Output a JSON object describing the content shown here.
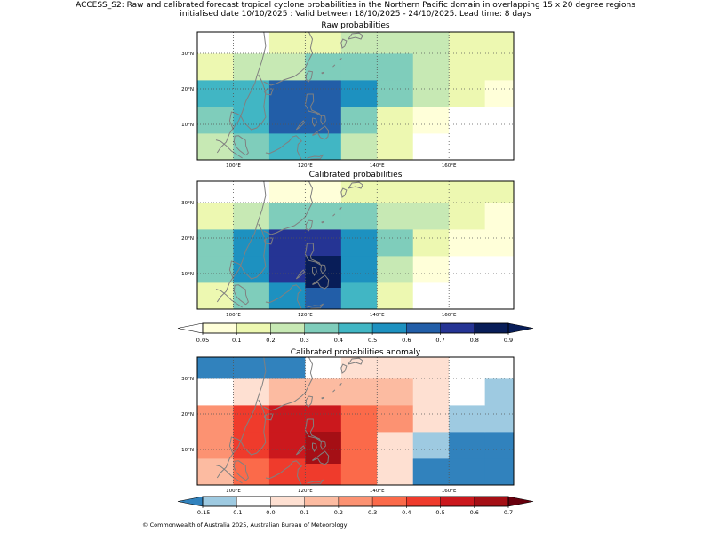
{
  "figure": {
    "title_line1": "ACCESS_S2: Raw and calibrated forecast tropical cyclone probabilities in the Northern Pacific domain in overlapping 15 x 20 degree regions",
    "title_line2": "initialised date 10/10/2025 :  Valid between 18/10/2025 - 24/10/2025. Lead time: 8 days",
    "copyright": "© Commonwealth of Australia 2025, Australian Bureau of Meteorology"
  },
  "chart_data": [
    {
      "type": "heatmap",
      "title": "Raw probabilities",
      "xlabel": "",
      "ylabel": "",
      "xlim": [
        90,
        178
      ],
      "ylim": [
        0,
        36
      ],
      "x_ticks": [
        {
          "value": 100,
          "label": "100°E"
        },
        {
          "value": 120,
          "label": "120°E"
        },
        {
          "value": 140,
          "label": "140°E"
        },
        {
          "value": 160,
          "label": "160°E"
        }
      ],
      "y_ticks": [
        {
          "value": 10,
          "label": "10°N"
        },
        {
          "value": 20,
          "label": "20°N"
        },
        {
          "value": 30,
          "label": "30°N"
        }
      ],
      "cell_size_deg": [
        10,
        7.5
      ],
      "cells": [
        {
          "lon": 90,
          "lat": 0,
          "v": 0.25
        },
        {
          "lon": 100,
          "lat": 0,
          "v": 0.35
        },
        {
          "lon": 110,
          "lat": 0,
          "v": 0.45
        },
        {
          "lon": 120,
          "lat": 0,
          "v": 0.45
        },
        {
          "lon": 130,
          "lat": 0,
          "v": 0.25
        },
        {
          "lon": 140,
          "lat": 0,
          "v": 0.15
        },
        {
          "lon": 150,
          "lat": 0,
          "v": 0.0
        },
        {
          "lon": 160,
          "lat": 0,
          "v": 0.0
        },
        {
          "lon": 170,
          "lat": 0,
          "v": 0.0
        },
        {
          "lon": 90,
          "lat": 7.5,
          "v": 0.35
        },
        {
          "lon": 100,
          "lat": 7.5,
          "v": 0.45
        },
        {
          "lon": 110,
          "lat": 7.5,
          "v": 0.65
        },
        {
          "lon": 120,
          "lat": 7.5,
          "v": 0.65
        },
        {
          "lon": 130,
          "lat": 7.5,
          "v": 0.35
        },
        {
          "lon": 140,
          "lat": 7.5,
          "v": 0.15
        },
        {
          "lon": 150,
          "lat": 7.5,
          "v": 0.07
        },
        {
          "lon": 160,
          "lat": 7.5,
          "v": 0.0
        },
        {
          "lon": 170,
          "lat": 7.5,
          "v": 0.0
        },
        {
          "lon": 90,
          "lat": 15,
          "v": 0.45
        },
        {
          "lon": 100,
          "lat": 15,
          "v": 0.45
        },
        {
          "lon": 110,
          "lat": 15,
          "v": 0.65
        },
        {
          "lon": 120,
          "lat": 15,
          "v": 0.65
        },
        {
          "lon": 130,
          "lat": 15,
          "v": 0.55
        },
        {
          "lon": 140,
          "lat": 15,
          "v": 0.35
        },
        {
          "lon": 150,
          "lat": 15,
          "v": 0.25
        },
        {
          "lon": 160,
          "lat": 15,
          "v": 0.15
        },
        {
          "lon": 170,
          "lat": 15,
          "v": 0.07
        },
        {
          "lon": 90,
          "lat": 22.5,
          "v": 0.15
        },
        {
          "lon": 100,
          "lat": 22.5,
          "v": 0.25
        },
        {
          "lon": 110,
          "lat": 22.5,
          "v": 0.25
        },
        {
          "lon": 120,
          "lat": 22.5,
          "v": 0.35
        },
        {
          "lon": 130,
          "lat": 22.5,
          "v": 0.35
        },
        {
          "lon": 140,
          "lat": 22.5,
          "v": 0.35
        },
        {
          "lon": 150,
          "lat": 22.5,
          "v": 0.25
        },
        {
          "lon": 160,
          "lat": 22.5,
          "v": 0.15
        },
        {
          "lon": 170,
          "lat": 22.5,
          "v": 0.15
        },
        {
          "lon": 90,
          "lat": 30,
          "v": 0.0
        },
        {
          "lon": 100,
          "lat": 30,
          "v": 0.0
        },
        {
          "lon": 110,
          "lat": 30,
          "v": 0.15
        },
        {
          "lon": 120,
          "lat": 30,
          "v": 0.15
        },
        {
          "lon": 130,
          "lat": 30,
          "v": 0.25
        },
        {
          "lon": 140,
          "lat": 30,
          "v": 0.25
        },
        {
          "lon": 150,
          "lat": 30,
          "v": 0.25
        },
        {
          "lon": 160,
          "lat": 30,
          "v": 0.15
        },
        {
          "lon": 170,
          "lat": 30,
          "v": 0.15
        }
      ]
    },
    {
      "type": "heatmap",
      "title": "Calibrated probabilities",
      "xlabel": "",
      "ylabel": "",
      "xlim": [
        90,
        178
      ],
      "ylim": [
        0,
        36
      ],
      "x_ticks": [
        {
          "value": 100,
          "label": "100°E"
        },
        {
          "value": 120,
          "label": "120°E"
        },
        {
          "value": 140,
          "label": "140°E"
        },
        {
          "value": 160,
          "label": "160°E"
        }
      ],
      "y_ticks": [
        {
          "value": 10,
          "label": "10°N"
        },
        {
          "value": 20,
          "label": "20°N"
        },
        {
          "value": 30,
          "label": "30°N"
        }
      ],
      "cell_size_deg": [
        10,
        7.5
      ],
      "cells": [
        {
          "lon": 90,
          "lat": 0,
          "v": 0.15
        },
        {
          "lon": 100,
          "lat": 0,
          "v": 0.35
        },
        {
          "lon": 110,
          "lat": 0,
          "v": 0.55
        },
        {
          "lon": 120,
          "lat": 0,
          "v": 0.65
        },
        {
          "lon": 130,
          "lat": 0,
          "v": 0.45
        },
        {
          "lon": 140,
          "lat": 0,
          "v": 0.15
        },
        {
          "lon": 150,
          "lat": 0,
          "v": 0.0
        },
        {
          "lon": 160,
          "lat": 0,
          "v": 0.0
        },
        {
          "lon": 170,
          "lat": 0,
          "v": 0.0
        },
        {
          "lon": 90,
          "lat": 7.5,
          "v": 0.35
        },
        {
          "lon": 100,
          "lat": 7.5,
          "v": 0.55
        },
        {
          "lon": 110,
          "lat": 7.5,
          "v": 0.75
        },
        {
          "lon": 120,
          "lat": 7.5,
          "v": 0.75
        },
        {
          "lon": 130,
          "lat": 7.5,
          "v": 0.55
        },
        {
          "lon": 140,
          "lat": 7.5,
          "v": 0.25
        },
        {
          "lon": 150,
          "lat": 7.5,
          "v": 0.07
        },
        {
          "lon": 160,
          "lat": 7.5,
          "v": 0.0
        },
        {
          "lon": 170,
          "lat": 7.5,
          "v": 0.0
        },
        {
          "lon": 90,
          "lat": 15,
          "v": 0.35
        },
        {
          "lon": 100,
          "lat": 15,
          "v": 0.55
        },
        {
          "lon": 110,
          "lat": 15,
          "v": 0.75
        },
        {
          "lon": 120,
          "lat": 15,
          "v": 0.75
        },
        {
          "lon": 130,
          "lat": 15,
          "v": 0.55
        },
        {
          "lon": 140,
          "lat": 15,
          "v": 0.35
        },
        {
          "lon": 150,
          "lat": 15,
          "v": 0.15
        },
        {
          "lon": 160,
          "lat": 15,
          "v": 0.07
        },
        {
          "lon": 170,
          "lat": 15,
          "v": 0.07
        },
        {
          "lon": 90,
          "lat": 22.5,
          "v": 0.15
        },
        {
          "lon": 100,
          "lat": 22.5,
          "v": 0.25
        },
        {
          "lon": 110,
          "lat": 22.5,
          "v": 0.35
        },
        {
          "lon": 120,
          "lat": 22.5,
          "v": 0.35
        },
        {
          "lon": 130,
          "lat": 22.5,
          "v": 0.35
        },
        {
          "lon": 140,
          "lat": 22.5,
          "v": 0.25
        },
        {
          "lon": 150,
          "lat": 22.5,
          "v": 0.25
        },
        {
          "lon": 160,
          "lat": 22.5,
          "v": 0.15
        },
        {
          "lon": 170,
          "lat": 22.5,
          "v": 0.07
        },
        {
          "lon": 90,
          "lat": 30,
          "v": 0.0
        },
        {
          "lon": 100,
          "lat": 30,
          "v": 0.0
        },
        {
          "lon": 110,
          "lat": 30,
          "v": 0.07
        },
        {
          "lon": 120,
          "lat": 30,
          "v": 0.07
        },
        {
          "lon": 130,
          "lat": 30,
          "v": 0.15
        },
        {
          "lon": 140,
          "lat": 30,
          "v": 0.15
        },
        {
          "lon": 150,
          "lat": 30,
          "v": 0.15
        },
        {
          "lon": 160,
          "lat": 30,
          "v": 0.15
        },
        {
          "lon": 170,
          "lat": 30,
          "v": 0.15
        }
      ],
      "special_cells": [
        {
          "lon": 120,
          "lat": 6,
          "lon_end": 130,
          "lat_end": 15,
          "v": 0.95
        }
      ]
    },
    {
      "type": "heatmap",
      "title": "Calibrated probabilities anomaly",
      "xlabel": "",
      "ylabel": "",
      "xlim": [
        90,
        178
      ],
      "ylim": [
        0,
        36
      ],
      "x_ticks": [
        {
          "value": 100,
          "label": "100°E"
        },
        {
          "value": 120,
          "label": "120°E"
        },
        {
          "value": 140,
          "label": "140°E"
        },
        {
          "value": 160,
          "label": "160°E"
        }
      ],
      "y_ticks": [
        {
          "value": 10,
          "label": "10°N"
        },
        {
          "value": 20,
          "label": "20°N"
        },
        {
          "value": 30,
          "label": "30°N"
        }
      ],
      "cell_size_deg": [
        10,
        7.5
      ],
      "cells": [
        {
          "lon": 90,
          "lat": 0,
          "v": 0.15
        },
        {
          "lon": 100,
          "lat": 0,
          "v": 0.35
        },
        {
          "lon": 110,
          "lat": 0,
          "v": 0.45
        },
        {
          "lon": 120,
          "lat": 0,
          "v": 0.45
        },
        {
          "lon": 130,
          "lat": 0,
          "v": 0.35
        },
        {
          "lon": 140,
          "lat": 0,
          "v": 0.05
        },
        {
          "lon": 150,
          "lat": 0,
          "v": -0.17
        },
        {
          "lon": 160,
          "lat": 0,
          "v": -0.17
        },
        {
          "lon": 170,
          "lat": 0,
          "v": -0.17
        },
        {
          "lon": 90,
          "lat": 7.5,
          "v": 0.25
        },
        {
          "lon": 100,
          "lat": 7.5,
          "v": 0.45
        },
        {
          "lon": 110,
          "lat": 7.5,
          "v": 0.55
        },
        {
          "lon": 120,
          "lat": 7.5,
          "v": 0.55
        },
        {
          "lon": 130,
          "lat": 7.5,
          "v": 0.35
        },
        {
          "lon": 140,
          "lat": 7.5,
          "v": 0.05
        },
        {
          "lon": 150,
          "lat": 7.5,
          "v": -0.12
        },
        {
          "lon": 160,
          "lat": 7.5,
          "v": -0.17
        },
        {
          "lon": 170,
          "lat": 7.5,
          "v": -0.17
        },
        {
          "lon": 90,
          "lat": 15,
          "v": 0.25
        },
        {
          "lon": 100,
          "lat": 15,
          "v": 0.45
        },
        {
          "lon": 110,
          "lat": 15,
          "v": 0.55
        },
        {
          "lon": 120,
          "lat": 15,
          "v": 0.55
        },
        {
          "lon": 130,
          "lat": 15,
          "v": 0.35
        },
        {
          "lon": 140,
          "lat": 15,
          "v": 0.25
        },
        {
          "lon": 150,
          "lat": 15,
          "v": 0.05
        },
        {
          "lon": 160,
          "lat": 15,
          "v": -0.12
        },
        {
          "lon": 170,
          "lat": 15,
          "v": -0.12
        },
        {
          "lon": 90,
          "lat": 22.5,
          "v": -0.05
        },
        {
          "lon": 100,
          "lat": 22.5,
          "v": 0.05
        },
        {
          "lon": 110,
          "lat": 22.5,
          "v": 0.15
        },
        {
          "lon": 120,
          "lat": 22.5,
          "v": 0.15
        },
        {
          "lon": 130,
          "lat": 22.5,
          "v": 0.15
        },
        {
          "lon": 140,
          "lat": 22.5,
          "v": 0.15
        },
        {
          "lon": 150,
          "lat": 22.5,
          "v": 0.05
        },
        {
          "lon": 160,
          "lat": 22.5,
          "v": -0.05
        },
        {
          "lon": 170,
          "lat": 22.5,
          "v": -0.12
        },
        {
          "lon": 90,
          "lat": 30,
          "v": -0.17
        },
        {
          "lon": 100,
          "lat": 30,
          "v": -0.17
        },
        {
          "lon": 110,
          "lat": 30,
          "v": -0.17
        },
        {
          "lon": 120,
          "lat": 30,
          "v": -0.05
        },
        {
          "lon": 130,
          "lat": 30,
          "v": 0.05
        },
        {
          "lon": 140,
          "lat": 30,
          "v": 0.05
        },
        {
          "lon": 150,
          "lat": 30,
          "v": 0.05
        },
        {
          "lon": 160,
          "lat": 30,
          "v": -0.05
        },
        {
          "lon": 170,
          "lat": 30,
          "v": -0.05
        }
      ],
      "special_cells": [
        {
          "lon": 120,
          "lat": 6,
          "lon_end": 130,
          "lat_end": 15,
          "v": 0.65
        }
      ]
    }
  ],
  "colorbars": {
    "probability": {
      "levels": [
        0.05,
        0.1,
        0.2,
        0.3,
        0.4,
        0.5,
        0.6,
        0.7,
        0.8,
        0.9
      ],
      "tick_labels": [
        "0.05",
        "0.1",
        "0.2",
        "0.3",
        "0.4",
        "0.5",
        "0.6",
        "0.7",
        "0.8",
        "0.9"
      ],
      "under_color": "#ffffff",
      "colors": [
        "#ffffd9",
        "#edf8b1",
        "#c7e9b4",
        "#7fcdbb",
        "#41b6c4",
        "#1d91c0",
        "#225ea8",
        "#253494",
        "#081d58"
      ],
      "over_color": "#081d58"
    },
    "anomaly": {
      "levels": [
        -0.15,
        -0.1,
        0.0,
        0.1,
        0.2,
        0.3,
        0.4,
        0.5,
        0.6,
        0.7
      ],
      "tick_labels": [
        "-0.15",
        "-0.1",
        "0.0",
        "0.1",
        "0.2",
        "0.3",
        "0.4",
        "0.5",
        "0.6",
        "0.7"
      ],
      "under_color": "#3182bd",
      "colors": [
        "#9ecae1",
        "#ffffff",
        "#fee0d2",
        "#fcbba1",
        "#fc9272",
        "#fb6a4a",
        "#ef3b2c",
        "#cb181d",
        "#a50f15"
      ],
      "over_color": "#67000d"
    }
  },
  "colors": {
    "coastline": "#808080",
    "gridline": "#555555",
    "frame": "#000000"
  }
}
